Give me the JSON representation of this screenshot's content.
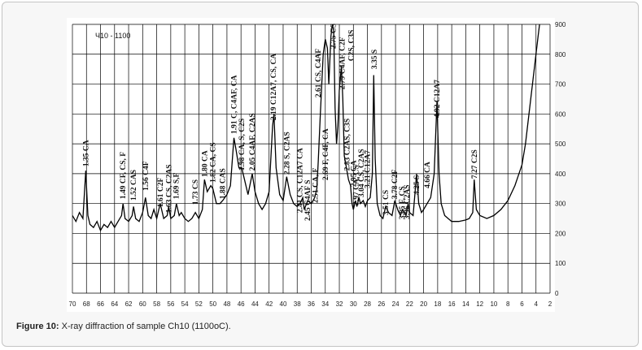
{
  "chart_data": {
    "type": "line",
    "sample_label": "Ч10 - 1100",
    "color": "#000000",
    "x": [
      70,
      69.5,
      69,
      68.5,
      68.1,
      67.8,
      67.5,
      67,
      66.5,
      66,
      65.5,
      65,
      64.5,
      64,
      63.5,
      63,
      62.8,
      62.5,
      62,
      61.5,
      61.3,
      61,
      60.5,
      60,
      59.6,
      59.2,
      58.8,
      58.4,
      58,
      57.5,
      57,
      56.5,
      56.3,
      56,
      55.5,
      55.2,
      54.8,
      54.5,
      54,
      53.5,
      53,
      52.5,
      52,
      51.5,
      51.2,
      50.8,
      50.3,
      50,
      49.5,
      49,
      48.6,
      48,
      47.5,
      47,
      46.7,
      46.3,
      45.9,
      45.5,
      45,
      44.4,
      44,
      43.5,
      43,
      42.5,
      42,
      41.5,
      41.3,
      41,
      40.5,
      40,
      39.5,
      39,
      38.5,
      38,
      37.6,
      37.2,
      37,
      36.5,
      36,
      35.5,
      35.2,
      35,
      34.7,
      34.3,
      34,
      33.7,
      33.5,
      33.2,
      33,
      32.8,
      32.6,
      32.4,
      32.2,
      32,
      31.7,
      31.5,
      31.3,
      31,
      30.7,
      30.4,
      30.2,
      30,
      29.7,
      29.5,
      29.2,
      29,
      28.6,
      28.3,
      28,
      27.6,
      27.3,
      27.1,
      26.9,
      26.6,
      26.2,
      25.8,
      25.4,
      25,
      24.5,
      24.1,
      23.7,
      23.3,
      23,
      22.5,
      22.2,
      22,
      21.5,
      21,
      20.7,
      20.3,
      20,
      19.5,
      19,
      18.5,
      18.1,
      17.8,
      17.5,
      17,
      16.5,
      16,
      15,
      14,
      13.5,
      13,
      12.8,
      12.5,
      12,
      11,
      10,
      9,
      8,
      7,
      6,
      5.5,
      5,
      4.5,
      4,
      3.7,
      3.5
    ],
    "values": [
      260,
      240,
      270,
      250,
      410,
      260,
      230,
      220,
      240,
      210,
      230,
      220,
      240,
      220,
      240,
      260,
      300,
      250,
      240,
      260,
      290,
      250,
      240,
      270,
      320,
      260,
      250,
      280,
      250,
      300,
      250,
      260,
      290,
      250,
      260,
      300,
      260,
      270,
      250,
      240,
      250,
      270,
      250,
      280,
      380,
      340,
      360,
      350,
      300,
      300,
      310,
      330,
      360,
      520,
      480,
      420,
      420,
      380,
      330,
      400,
      340,
      300,
      280,
      300,
      340,
      560,
      600,
      420,
      330,
      310,
      390,
      330,
      300,
      290,
      300,
      320,
      280,
      310,
      300,
      320,
      350,
      440,
      600,
      800,
      850,
      820,
      700,
      860,
      900,
      880,
      620,
      500,
      560,
      680,
      760,
      650,
      460,
      420,
      380,
      360,
      300,
      280,
      310,
      290,
      320,
      300,
      310,
      290,
      310,
      320,
      400,
      730,
      450,
      300,
      260,
      250,
      290,
      270,
      260,
      310,
      280,
      260,
      280,
      260,
      300,
      270,
      260,
      400,
      300,
      270,
      280,
      300,
      320,
      400,
      640,
      400,
      300,
      260,
      250,
      240,
      240,
      245,
      250,
      270,
      380,
      280,
      260,
      250,
      260,
      280,
      310,
      360,
      430,
      500,
      600,
      700,
      800,
      860,
      900
    ],
    "xlim": [
      70,
      2
    ],
    "ylim": [
      0,
      900
    ],
    "xticks": [
      70,
      68,
      66,
      64,
      62,
      60,
      58,
      56,
      54,
      52,
      50,
      48,
      46,
      44,
      42,
      40,
      38,
      36,
      34,
      32,
      30,
      28,
      26,
      24,
      22,
      20,
      18,
      16,
      14,
      12,
      10,
      8,
      6,
      4,
      2
    ],
    "yticks": [
      0,
      100,
      200,
      300,
      400,
      500,
      600,
      700,
      800,
      900
    ],
    "grid": true,
    "annotations": [
      {
        "text": "1.35 CA",
        "x": 68.1,
        "y": 424
      },
      {
        "text": "1.49 CF, CS, F",
        "x": 62.8,
        "y": 315
      },
      {
        "text": "1.52 CAS",
        "x": 61.3,
        "y": 310
      },
      {
        "text": "1.56 C4F",
        "x": 59.6,
        "y": 343
      },
      {
        "text": "1.61 C2F",
        "x": 57.5,
        "y": 288
      },
      {
        "text": "1.63 CS, C2AS",
        "x": 56.3,
        "y": 269
      },
      {
        "text": "1.69 S,F",
        "x": 55.2,
        "y": 315
      },
      {
        "text": "1.73 CS",
        "x": 52.5,
        "y": 296
      },
      {
        "text": "1.80 CA",
        "x": 51.2,
        "y": 389
      },
      {
        "text": "1.82 CA, CS",
        "x": 50,
        "y": 370
      },
      {
        "text": "1.88 CAS",
        "x": 48.6,
        "y": 315
      },
      {
        "text": "1.91 C, C4AF, CA",
        "x": 47,
        "y": 533
      },
      {
        "text": "1.98 CA, S, C2S",
        "x": 45.9,
        "y": 410
      },
      {
        "text": "2.05 C4AF, C2AS",
        "x": 44.4,
        "y": 410
      },
      {
        "text": "2.19 C12A7, CS, CA",
        "x": 41.4,
        "y": 579
      },
      {
        "text": "2.28 S, C2AS",
        "x": 39.5,
        "y": 397
      },
      {
        "text": "2.41 CS, C12A7 CA",
        "x": 37.6,
        "y": 269
      },
      {
        "text": "2.45 C4AF S",
        "x": 36.5,
        "y": 242
      },
      {
        "text": "2.51 CA, F",
        "x": 35.4,
        "y": 302
      },
      {
        "text": "2.61 CS, C4AF",
        "x": 35,
        "y": 655
      },
      {
        "text": "2.69 F, C4F, CA",
        "x": 34,
        "y": 378
      },
      {
        "text": "2.75 CS",
        "x": 32.9,
        "y": 818
      },
      {
        "text": "2.79 C4AF, C2F",
        "x": 31.6,
        "y": 682
      },
      {
        "text": "C2S, C3S",
        "x": 30.3,
        "y": 777
      },
      {
        "text": "2.83 C2AS, C3S",
        "x": 30.9,
        "y": 410
      },
      {
        "text": "2.95 CA",
        "x": 30,
        "y": 356
      },
      {
        "text": "2.97 CA, CS",
        "x": 29.6,
        "y": 294
      },
      {
        "text": "3.04 CS, C2AS",
        "x": 28.9,
        "y": 321
      },
      {
        "text": "3.21 C12A7",
        "x": 28,
        "y": 351
      },
      {
        "text": "3.35 S",
        "x": 27,
        "y": 750
      },
      {
        "text": "3.51 CS",
        "x": 25.4,
        "y": 261
      },
      {
        "text": "3.78 C2F",
        "x": 24.1,
        "y": 315
      },
      {
        "text": "3.85 F, CS",
        "x": 23.1,
        "y": 247
      },
      {
        "text": "3.96 C2AS",
        "x": 22.4,
        "y": 247
      },
      {
        "text": "4.25 S",
        "x": 21,
        "y": 329
      },
      {
        "text": "4.66 CA",
        "x": 19.5,
        "y": 351
      },
      {
        "text": "4.92 C12A7",
        "x": 18.1,
        "y": 587
      },
      {
        "text": "7.27 C2S",
        "x": 12.8,
        "y": 383
      }
    ]
  },
  "caption": {
    "label": "Figure 10:",
    "text": "X-ray diffraction of sample Ch10 (1100oC)."
  }
}
